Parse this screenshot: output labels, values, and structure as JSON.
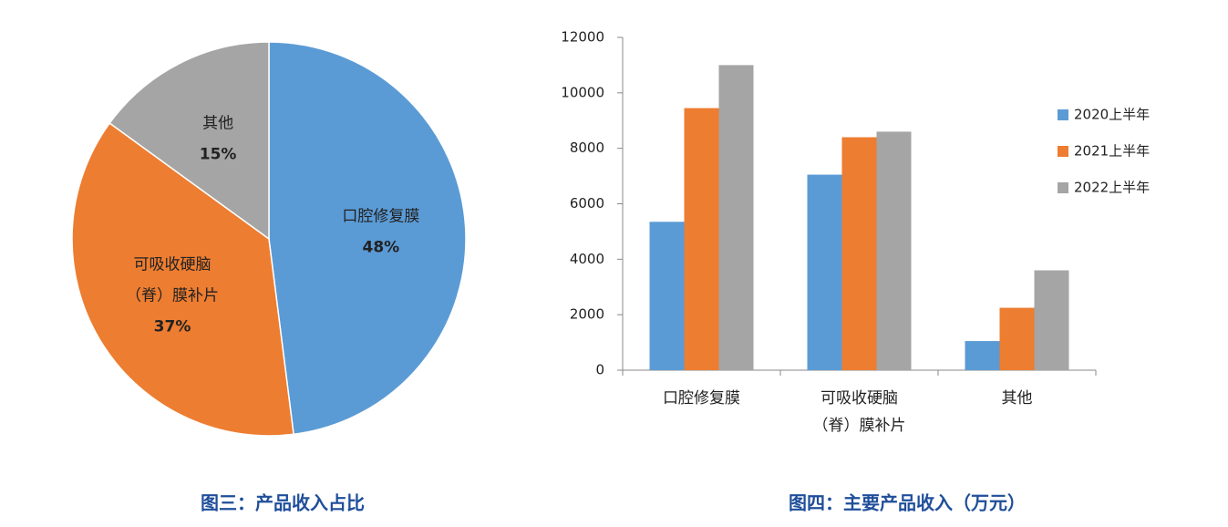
{
  "chart_data": [
    {
      "type": "pie",
      "title": "图三：产品收入占比",
      "categories": [
        "口腔修复膜",
        "可吸收硬脑\n（脊）膜补片",
        "其他"
      ],
      "values": [
        48,
        37,
        15
      ],
      "value_labels": [
        "48%",
        "37%",
        "15%"
      ],
      "colors": [
        "#5b9bd5",
        "#ed7d31",
        "#a5a5a5"
      ]
    },
    {
      "type": "bar",
      "title": "图四：主要产品收入（万元）",
      "categories": [
        "口腔修复膜",
        "可吸收硬脑\n（脊）膜补片",
        "其他"
      ],
      "series": [
        {
          "name": "2020上半年",
          "color": "#5b9bd5",
          "values": [
            5350,
            7050,
            1050
          ]
        },
        {
          "name": "2021上半年",
          "color": "#ed7d31",
          "values": [
            9450,
            8400,
            2250
          ]
        },
        {
          "name": "2022上半年",
          "color": "#a5a5a5",
          "values": [
            11000,
            8600,
            3600
          ]
        }
      ],
      "ylim": [
        0,
        12000
      ],
      "yticks": [
        0,
        2000,
        4000,
        6000,
        8000,
        10000,
        12000
      ],
      "legend": "right"
    }
  ]
}
